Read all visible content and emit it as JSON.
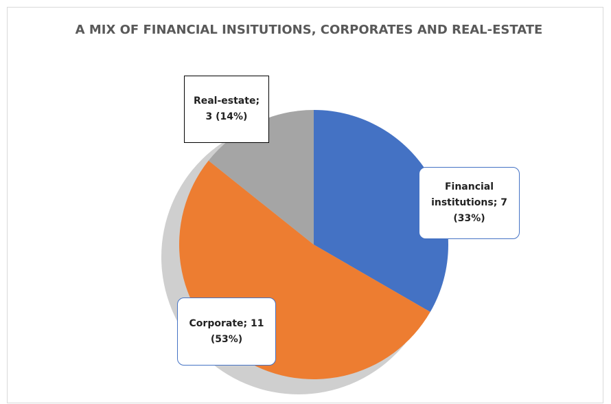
{
  "chart_data": {
    "type": "pie",
    "title": "A MIX OF FINANCIAL INSITUTIONS, CORPORATES AND REAL-ESTATE",
    "categories": [
      "Financial institutions",
      "Corporate",
      "Real-estate"
    ],
    "values": [
      7,
      11,
      3
    ],
    "value_labels": [
      "Financial institutions; 7 (33%)",
      "Corporate; 11 (53%)",
      "Real-estate; 3 (14%)"
    ],
    "colors": [
      "#4472c4",
      "#ed7d31",
      "#a5a5a5"
    ]
  }
}
